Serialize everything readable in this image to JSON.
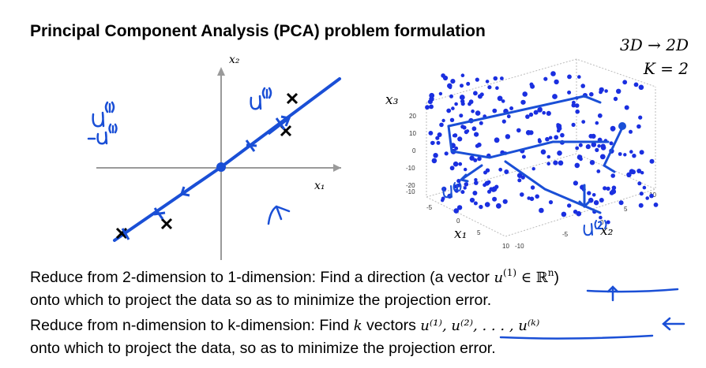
{
  "title": "Principal Component Analysis (PCA) problem formulation",
  "dims": {
    "line1": "3D → 2D",
    "line2": "K = 2"
  },
  "left_plot": {
    "axis_x_label": "x₁",
    "axis_y_label": "x₂"
  },
  "right_plot": {
    "axis_z_label": "x₃",
    "axis_x_label": "x₁",
    "axis_y_label": "x₂",
    "z_ticks": [
      "20",
      "10",
      "0",
      "-10",
      "-20"
    ],
    "x_ticks": [
      "-10",
      "-5",
      "0",
      "5",
      "10"
    ],
    "y_ticks": [
      "-10",
      "-5",
      "0",
      "5",
      "10"
    ]
  },
  "paragraphs": {
    "p1_line1_text": "Reduce from 2-dimension to 1-dimension: Find a direction (a vector ",
    "p1_line1_math_base": "u",
    "p1_line1_math_sup": "(1)",
    "p1_line1_math_rest": " ∈ ℝ",
    "p1_line1_math_rest_sup": "n",
    "p1_line1_close": ")",
    "p1_line2": "onto which to project the data so as to minimize the projection error.",
    "p2_line1_a": "Reduce from n-dimension to k-dimension: Find ",
    "p2_line1_k": "k",
    "p2_line1_b": " vectors ",
    "p2_line1_math": "u⁽¹⁾, u⁽²⁾, . . . , u⁽ᵏ⁾",
    "p2_line2": "onto which to project the data, so as to minimize the projection error."
  },
  "annotation_color": "#1a4fd6"
}
